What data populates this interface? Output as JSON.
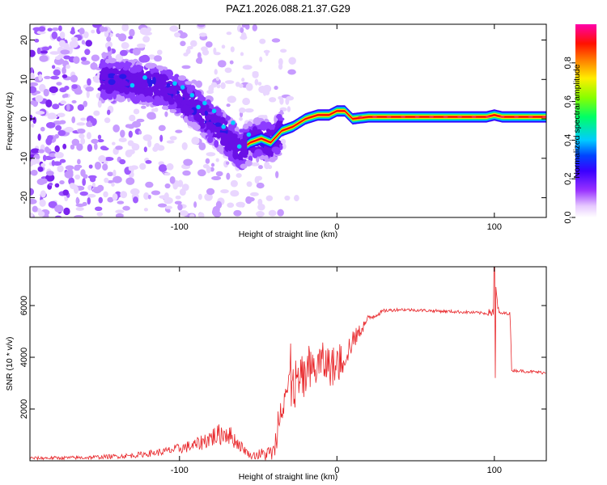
{
  "figure_title": "PAZ1.2026.088.21.37.G29",
  "chart_data": [
    {
      "type": "heatmap",
      "title": "PAZ1.2026.088.21.37.G29",
      "xlabel": "Height of straight line (km)",
      "ylabel": "Frequency (Hz)",
      "xlim": [
        -195,
        133
      ],
      "ylim": [
        -25,
        24
      ],
      "xticks": [
        -100,
        0,
        100
      ],
      "xtick_labels": [
        "-100",
        "0",
        "100"
      ],
      "yticks": [
        -20,
        -10,
        0,
        10,
        20
      ],
      "ytick_labels": [
        "-20",
        "-10",
        "0",
        "10",
        "20"
      ],
      "colorbar": {
        "label": "Normalized spectral amplitude",
        "range": [
          0,
          1
        ],
        "ticks": [
          0.0,
          0.2,
          0.4,
          0.6,
          0.8
        ],
        "tick_labels": [
          "0.0",
          "0.2",
          "0.4",
          "0.6",
          "0.8"
        ],
        "colormap": "rainbow (white-violet-blue-cyan-green-yellow-red-magenta)"
      },
      "ridge": {
        "description": "Frequency of the dominant spectral peak vs height",
        "x": [
          -140,
          -125,
          -110,
          -100,
          -90,
          -80,
          -70,
          -62,
          -55,
          -48,
          -42,
          -35,
          -28,
          -20,
          -12,
          -5,
          0,
          5,
          10,
          20,
          40,
          60,
          80,
          95,
          100,
          105,
          120,
          133
        ],
        "y": [
          10,
          9,
          8,
          6,
          3,
          -1,
          -4,
          -8,
          -6,
          -5,
          -6,
          -3,
          -2,
          0,
          1,
          1,
          2,
          2,
          0,
          0.5,
          0.5,
          0.5,
          0.5,
          0.5,
          1,
          0.5,
          0.5,
          0.5
        ]
      }
    },
    {
      "type": "line",
      "xlabel": "Height of straight line (km)",
      "ylabel": "SNR (10 * v/v)",
      "xlim": [
        -195,
        133
      ],
      "ylim": [
        0,
        7500
      ],
      "xticks": [
        -100,
        0,
        100
      ],
      "xtick_labels": [
        "-100",
        "0",
        "100"
      ],
      "yticks": [
        2000,
        4000,
        6000
      ],
      "ytick_labels": [
        "2000",
        "4000",
        "6000"
      ],
      "series": [
        {
          "name": "SNR",
          "color": "#e8262a",
          "envelope_x": [
            -195,
            -160,
            -130,
            -110,
            -90,
            -80,
            -70,
            -60,
            -55,
            -40,
            -35,
            -30,
            -20,
            -10,
            0,
            10,
            20,
            30,
            40,
            60,
            80,
            95,
            100,
            101,
            103,
            110,
            111,
            133
          ],
          "envelope_y": [
            100,
            120,
            200,
            350,
            600,
            900,
            1100,
            500,
            200,
            300,
            2600,
            2800,
            3200,
            3800,
            3600,
            4600,
            5500,
            5800,
            5850,
            5800,
            5750,
            5700,
            5800,
            6500,
            5700,
            5700,
            3500,
            3400
          ],
          "noise": [
            60,
            70,
            100,
            150,
            250,
            400,
            450,
            200,
            120,
            400,
            1100,
            1100,
            900,
            800,
            800,
            400,
            150,
            70,
            60,
            60,
            60,
            60,
            300,
            400,
            60,
            60,
            60,
            60
          ]
        }
      ]
    }
  ]
}
